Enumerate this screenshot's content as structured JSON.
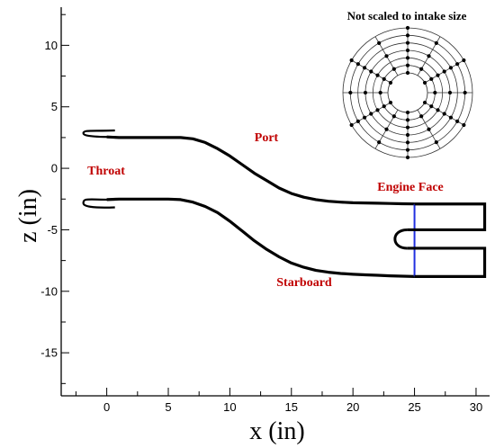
{
  "chart_data": {
    "type": "line",
    "xlabel": "x (in)",
    "ylabel": "z (in)",
    "xlim": [
      -3.7,
      31.1
    ],
    "ylim": [
      -18.5,
      13.1
    ],
    "xticks": [
      0,
      5,
      10,
      15,
      20,
      25,
      30
    ],
    "yticks": [
      -15,
      -10,
      -5,
      0,
      5,
      10
    ],
    "series": [
      {
        "role": "port-wall",
        "x": [
          0,
          1,
          2,
          3,
          4,
          5,
          6,
          7,
          8,
          9,
          10,
          11,
          12,
          13,
          14,
          15,
          16,
          17,
          18,
          19,
          20,
          21,
          22,
          23,
          24,
          25
        ],
        "y": [
          2.55,
          2.5,
          2.5,
          2.5,
          2.5,
          2.5,
          2.5,
          2.4,
          2.1,
          1.6,
          1.0,
          0.3,
          -0.4,
          -1.0,
          -1.6,
          -2.05,
          -2.35,
          -2.55,
          -2.68,
          -2.75,
          -2.8,
          -2.82,
          -2.84,
          -2.86,
          -2.88,
          -2.9
        ]
      },
      {
        "role": "starboard-wall",
        "x": [
          0,
          1,
          2,
          3,
          4,
          5,
          6,
          7,
          8,
          9,
          10,
          11,
          12,
          13,
          14,
          15,
          16,
          17,
          18,
          19,
          20,
          21,
          22,
          23,
          24,
          25
        ],
        "y": [
          -2.55,
          -2.5,
          -2.5,
          -2.5,
          -2.5,
          -2.5,
          -2.55,
          -2.75,
          -3.1,
          -3.6,
          -4.3,
          -5.1,
          -5.9,
          -6.6,
          -7.2,
          -7.7,
          -8.05,
          -8.3,
          -8.45,
          -8.55,
          -8.62,
          -8.66,
          -8.7,
          -8.74,
          -8.77,
          -8.8
        ]
      }
    ],
    "engine_face_x": 25,
    "engine_face_z": [
      -2.9,
      -8.8
    ],
    "annotations": [
      "Port",
      "Throat",
      "Engine Face",
      "Starboard"
    ],
    "inset_title": "Not scaled to intake size"
  }
}
